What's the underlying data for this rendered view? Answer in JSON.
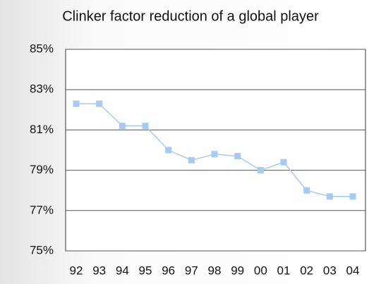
{
  "chart_data": {
    "type": "line",
    "title": "Clinker factor reduction of a global player",
    "categories": [
      "92",
      "93",
      "94",
      "95",
      "96",
      "97",
      "98",
      "99",
      "00",
      "01",
      "02",
      "03",
      "04"
    ],
    "values": [
      82.3,
      82.3,
      81.2,
      81.2,
      80.0,
      79.5,
      79.8,
      79.7,
      79.0,
      79.4,
      78.0,
      77.7,
      77.7
    ],
    "color": "#a6cbf2",
    "ylim": [
      75,
      85
    ],
    "yticks": [
      {
        "value": 75,
        "label": "75%"
      },
      {
        "value": 77,
        "label": "77%"
      },
      {
        "value": 79,
        "label": "79%"
      },
      {
        "value": 81,
        "label": "81%"
      },
      {
        "value": 83,
        "label": "83%"
      },
      {
        "value": 85,
        "label": "85%"
      }
    ],
    "grid": true
  }
}
